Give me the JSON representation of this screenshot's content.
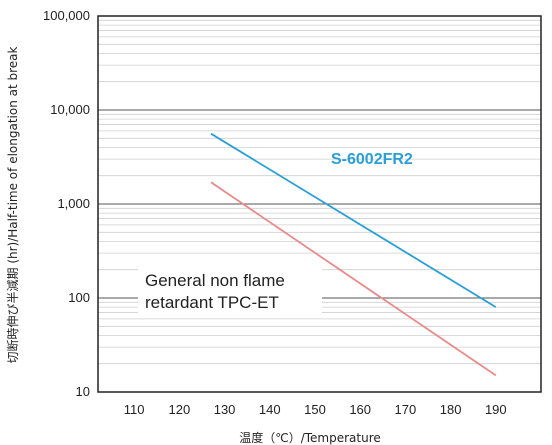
{
  "chart_data": {
    "type": "line",
    "xlabel": "温度（℃）/Temperature",
    "ylabel": "切断時伸び半減期 (hr)/Half-time of elongation at break",
    "xlim": [
      102,
      200
    ],
    "ylim": [
      10,
      100000
    ],
    "y_scale": "log",
    "x_ticks": [
      110,
      120,
      130,
      140,
      150,
      160,
      170,
      180,
      190
    ],
    "y_ticks": [
      10,
      100,
      1000,
      10000,
      100000
    ],
    "y_tick_labels": [
      "10",
      "100",
      "1,000",
      "10,000",
      "100,000"
    ],
    "grid": true,
    "series": [
      {
        "name": "S-6002FR2",
        "color": "#2a9fd6",
        "x": [
          127,
          190
        ],
        "y": [
          5600,
          80
        ]
      },
      {
        "name": "",
        "color": "#e88b8b",
        "x": [
          127,
          190
        ],
        "y": [
          1700,
          15
        ]
      }
    ],
    "annotation": {
      "line1": "General non flame",
      "line2": "retardant TPC-ET"
    }
  }
}
